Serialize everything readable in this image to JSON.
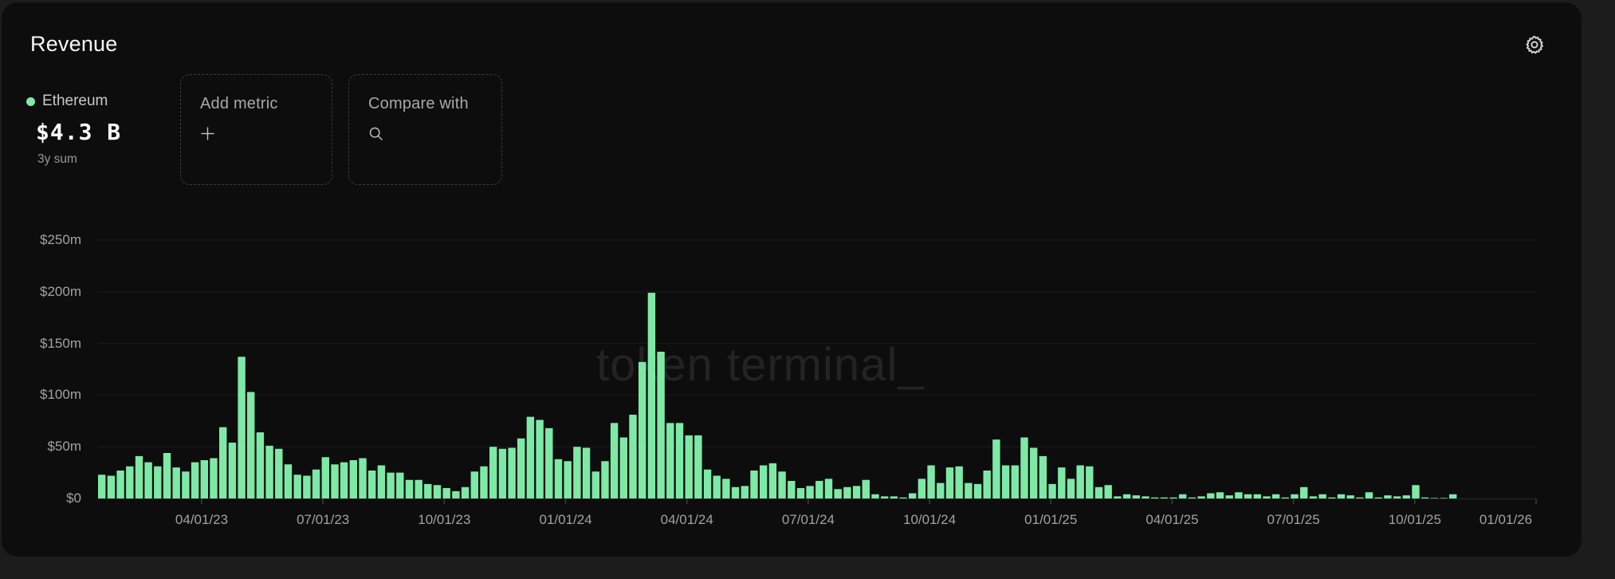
{
  "header": {
    "title": "Revenue"
  },
  "toolbar": {
    "settings_icon": "gear"
  },
  "legend": {
    "series_name": "Ethereum",
    "value": "$4.3 B",
    "period_label": "3y sum",
    "dot_color": "#7ee9a6"
  },
  "actions": {
    "add_metric": {
      "label": "Add metric",
      "icon": "plus"
    },
    "compare_with": {
      "label": "Compare with",
      "icon": "search"
    }
  },
  "watermark": {
    "text": "token terminal_"
  },
  "colors": {
    "bar": "#7ee9a6",
    "card_bg": "#0d0d0d",
    "page_bg": "#1c1c1c",
    "gridline": "#1d1d1f",
    "baseline": "#2b2b2e",
    "tick": "#3d3d3d",
    "axis_text": "#a2a2a2"
  },
  "chart_data": {
    "type": "bar",
    "title": "Revenue",
    "series_name": "Ethereum weekly revenue",
    "unit": "$m",
    "ylabel": "",
    "xlabel": "",
    "ylim": [
      0,
      250
    ],
    "grid": "horizontal",
    "legend_position": "top-left",
    "y_tick_values": [
      0,
      50,
      100,
      150,
      200,
      250
    ],
    "y_tick_labels": [
      "$0",
      "$50m",
      "$100m",
      "$150m",
      "$200m",
      "$250m"
    ],
    "x_tick_labels": [
      "04/01/23",
      "07/01/23",
      "10/01/23",
      "01/01/24",
      "04/01/24",
      "07/01/24",
      "10/01/24",
      "01/01/25",
      "04/01/25",
      "07/01/25",
      "10/01/25",
      "01/01/26"
    ],
    "x_description": "weekly bars, ~Jan 2023 through Nov 2025",
    "values": [
      23,
      22,
      27,
      31,
      41,
      35,
      31,
      44,
      30,
      26,
      35,
      37,
      39,
      69,
      54,
      137,
      103,
      64,
      51,
      48,
      33,
      23,
      22,
      28,
      40,
      33,
      35,
      37,
      39,
      27,
      32,
      25,
      25,
      18,
      18,
      14,
      13,
      10,
      7,
      11,
      26,
      31,
      50,
      48,
      49,
      58,
      79,
      76,
      68,
      38,
      36,
      50,
      49,
      26,
      36,
      73,
      59,
      81,
      132,
      199,
      142,
      73,
      73,
      61,
      61,
      28,
      22,
      19,
      11,
      12,
      27,
      32,
      34,
      26,
      17,
      10,
      12,
      17,
      19,
      9,
      11,
      12,
      18,
      4,
      2,
      2,
      1,
      5,
      19,
      32,
      15,
      30,
      31,
      15,
      14,
      27,
      57,
      32,
      32,
      59,
      49,
      41,
      14,
      30,
      19,
      32,
      31,
      11,
      13,
      2,
      4,
      3,
      2,
      1,
      1,
      1,
      4,
      1,
      2,
      5,
      6,
      3,
      6,
      4,
      4,
      2,
      4,
      1,
      4,
      11,
      2,
      4,
      1,
      4,
      3,
      1,
      6,
      1,
      3,
      2,
      3,
      13,
      1,
      0.5,
      0.5,
      4
    ]
  }
}
